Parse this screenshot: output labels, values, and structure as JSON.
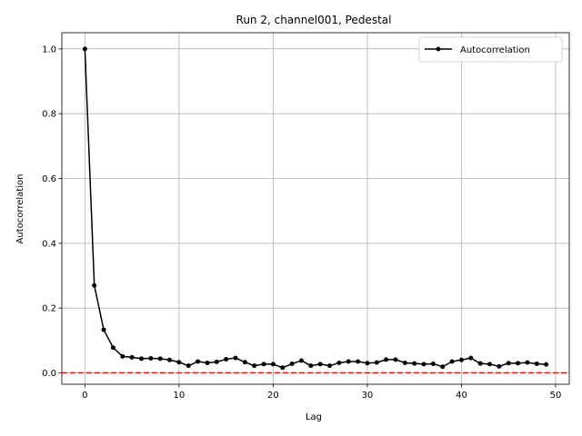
{
  "chart_data": {
    "type": "line",
    "title": "Run 2, channel001, Pedestal",
    "xlabel": "Lag",
    "ylabel": "Autocorrelation",
    "xlim": [
      -2.45,
      51.45
    ],
    "ylim": [
      -0.035,
      1.05
    ],
    "x_ticks": [
      0,
      10,
      20,
      30,
      40,
      50
    ],
    "y_ticks": [
      0.0,
      0.2,
      0.4,
      0.6,
      0.8,
      1.0
    ],
    "x_tick_labels": [
      "0",
      "10",
      "20",
      "30",
      "40",
      "50"
    ],
    "y_tick_labels": [
      "0.0",
      "0.2",
      "0.4",
      "0.6",
      "0.8",
      "1.0"
    ],
    "grid": true,
    "legend_position": "top-right",
    "series": [
      {
        "name": "Autocorrelation",
        "color": "#000000",
        "marker": "circle",
        "x": [
          0,
          1,
          2,
          3,
          4,
          5,
          6,
          7,
          8,
          9,
          10,
          11,
          12,
          13,
          14,
          15,
          16,
          17,
          18,
          19,
          20,
          21,
          22,
          23,
          24,
          25,
          26,
          27,
          28,
          29,
          30,
          31,
          32,
          33,
          34,
          35,
          36,
          37,
          38,
          39,
          40,
          41,
          42,
          43,
          44,
          45,
          46,
          47,
          48,
          49
        ],
        "y": [
          1.0,
          0.27,
          0.133,
          0.078,
          0.051,
          0.048,
          0.044,
          0.045,
          0.044,
          0.04,
          0.033,
          0.022,
          0.035,
          0.031,
          0.034,
          0.042,
          0.046,
          0.033,
          0.022,
          0.027,
          0.027,
          0.016,
          0.028,
          0.038,
          0.022,
          0.027,
          0.022,
          0.031,
          0.035,
          0.035,
          0.03,
          0.032,
          0.041,
          0.041,
          0.031,
          0.029,
          0.027,
          0.028,
          0.019,
          0.035,
          0.04,
          0.046,
          0.029,
          0.027,
          0.02,
          0.03,
          0.03,
          0.032,
          0.028,
          0.026
        ]
      }
    ],
    "reference_line": {
      "y": 0.0,
      "color": "#ff0000",
      "style": "dashed"
    }
  }
}
